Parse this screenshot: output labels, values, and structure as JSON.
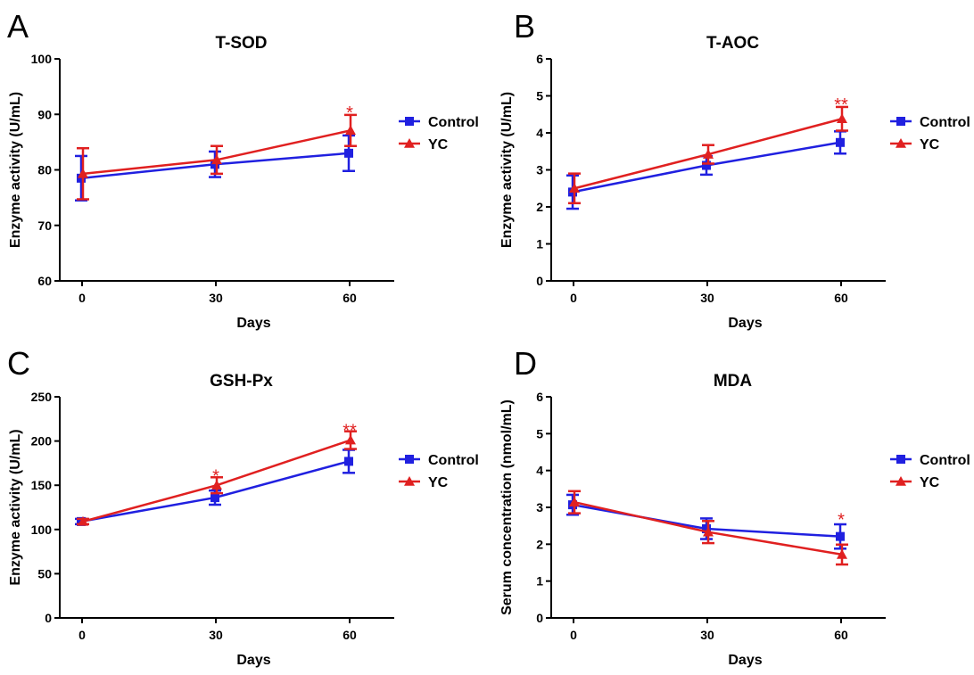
{
  "colors": {
    "control": "#2020e0",
    "yc": "#e02020",
    "axis": "#000000"
  },
  "chart_data": [
    {
      "panel": "A",
      "type": "line",
      "title": "T-SOD",
      "xlabel": "Days",
      "ylabel": "Enzyme activity (U/mL)",
      "x": [
        0,
        30,
        60
      ],
      "xticks": [
        "0",
        "30",
        "60"
      ],
      "xlim": [
        -5,
        70
      ],
      "ylim": [
        60,
        100
      ],
      "yticks": [
        60,
        70,
        80,
        90,
        100
      ],
      "legend_position": "right",
      "series": [
        {
          "name": "Control",
          "marker": "square",
          "values": [
            78.5,
            81.0,
            83.0
          ],
          "errors": [
            4.0,
            2.3,
            3.2
          ]
        },
        {
          "name": "YC",
          "marker": "triangle",
          "values": [
            79.3,
            81.8,
            87.1
          ],
          "errors": [
            4.6,
            2.5,
            2.8
          ]
        }
      ],
      "annotations": [
        {
          "x": 60,
          "y": 90.5,
          "text": "*"
        }
      ]
    },
    {
      "panel": "B",
      "type": "line",
      "title": "T-AOC",
      "xlabel": "Days",
      "ylabel": "Enzyme activity (U/mL)",
      "x": [
        0,
        30,
        60
      ],
      "xticks": [
        "0",
        "30",
        "60"
      ],
      "xlim": [
        -5,
        70
      ],
      "ylim": [
        0,
        6
      ],
      "yticks": [
        0,
        1,
        2,
        3,
        4,
        5,
        6
      ],
      "legend_position": "right",
      "series": [
        {
          "name": "Control",
          "marker": "square",
          "values": [
            2.4,
            3.12,
            3.74
          ],
          "errors": [
            0.45,
            0.25,
            0.3
          ]
        },
        {
          "name": "YC",
          "marker": "triangle",
          "values": [
            2.5,
            3.42,
            4.38
          ],
          "errors": [
            0.4,
            0.25,
            0.32
          ]
        }
      ],
      "annotations": [
        {
          "x": 60,
          "y": 4.8,
          "text": "**"
        }
      ]
    },
    {
      "panel": "C",
      "type": "line",
      "title": "GSH-Px",
      "xlabel": "Days",
      "ylabel": "Enzyme activity (U/mL)",
      "x": [
        0,
        30,
        60
      ],
      "xticks": [
        "0",
        "30",
        "60"
      ],
      "xlim": [
        -5,
        70
      ],
      "ylim": [
        0,
        250
      ],
      "yticks": [
        0,
        50,
        100,
        150,
        200,
        250
      ],
      "legend_position": "right",
      "series": [
        {
          "name": "Control",
          "marker": "square",
          "values": [
            109,
            136,
            177
          ],
          "errors": [
            3,
            8,
            13
          ]
        },
        {
          "name": "YC",
          "marker": "triangle",
          "values": [
            109,
            150,
            201
          ],
          "errors": [
            3,
            9,
            10
          ]
        }
      ],
      "annotations": [
        {
          "x": 30,
          "y": 162,
          "text": "*"
        },
        {
          "x": 60,
          "y": 213,
          "text": "**"
        }
      ]
    },
    {
      "panel": "D",
      "type": "line",
      "title": "MDA",
      "xlabel": "Days",
      "ylabel": "Serum concentration (nmol/mL)",
      "x": [
        0,
        30,
        60
      ],
      "xticks": [
        "0",
        "30",
        "60"
      ],
      "xlim": [
        -5,
        70
      ],
      "ylim": [
        0,
        6
      ],
      "yticks": [
        0,
        1,
        2,
        3,
        4,
        5,
        6
      ],
      "legend_position": "right",
      "series": [
        {
          "name": "Control",
          "marker": "square",
          "values": [
            3.07,
            2.42,
            2.21
          ],
          "errors": [
            0.27,
            0.28,
            0.33
          ]
        },
        {
          "name": "YC",
          "marker": "triangle",
          "values": [
            3.14,
            2.33,
            1.72
          ],
          "errors": [
            0.3,
            0.3,
            0.27
          ]
        }
      ],
      "annotations": [
        {
          "x": 60,
          "y": 2.7,
          "text": "*"
        }
      ]
    }
  ]
}
